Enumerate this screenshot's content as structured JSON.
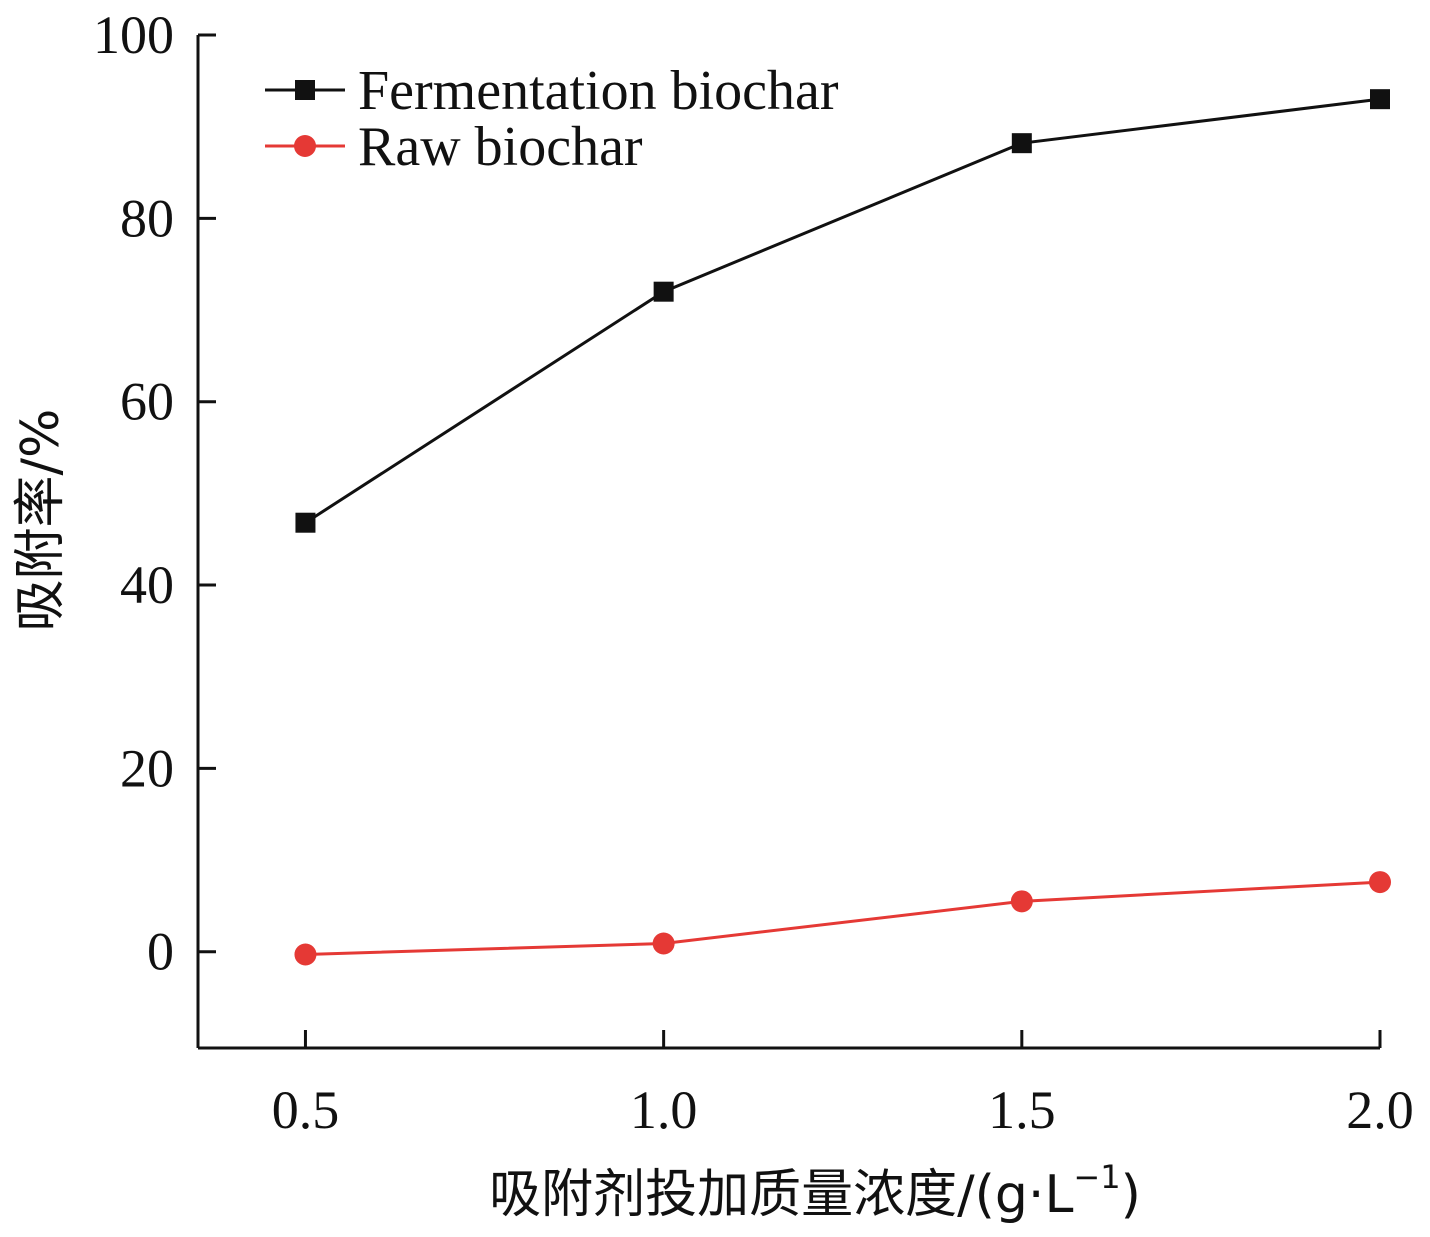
{
  "chart_data": {
    "type": "line",
    "title": "",
    "xlabel": "吸附剂投加质量浓度/(g·L",
    "xlabel_sup": "−1",
    "xlabel_end": ")",
    "ylabel": "吸附率/%",
    "x": [
      0.5,
      1.0,
      1.5,
      2.0
    ],
    "x_tick_labels": [
      "0.5",
      "1.0",
      "1.5",
      "2.0"
    ],
    "y_ticks": [
      0,
      20,
      40,
      60,
      80,
      100
    ],
    "y_tick_labels": [
      "0",
      "20",
      "40",
      "60",
      "80",
      "100"
    ],
    "xlim": [
      0.35,
      2.0
    ],
    "ylim": [
      -10.5,
      100
    ],
    "grid": false,
    "legend_position": "top-left",
    "series": [
      {
        "name": "Fermentation biochar",
        "values": [
          46.8,
          72.0,
          88.2,
          93.0
        ],
        "color": "#111111",
        "marker": "square"
      },
      {
        "name": "Raw biochar",
        "values": [
          -0.3,
          0.9,
          5.5,
          7.6
        ],
        "color": "#e53935",
        "marker": "circle"
      }
    ]
  }
}
